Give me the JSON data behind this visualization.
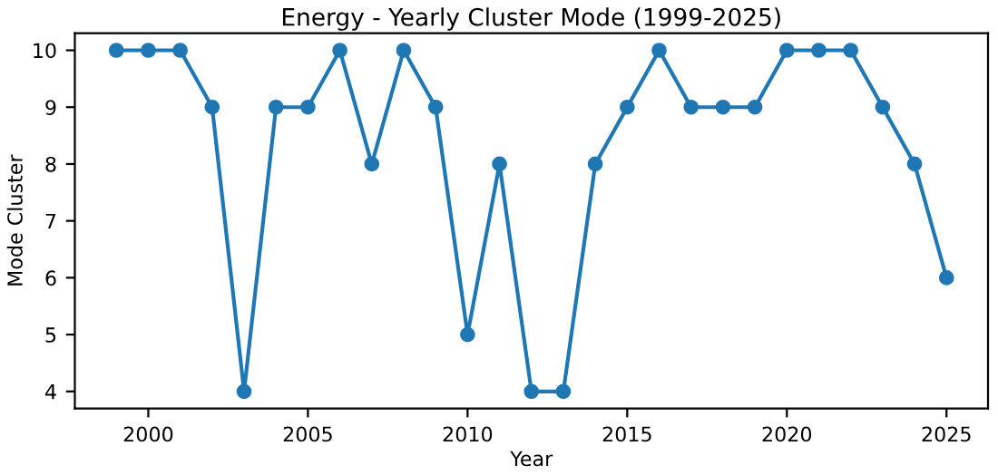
{
  "chart_data": {
    "type": "line",
    "title": "Energy - Yearly Cluster Mode (1999-2025)",
    "xlabel": "Year",
    "ylabel": "Mode Cluster",
    "x": [
      1999,
      2000,
      2001,
      2002,
      2003,
      2004,
      2005,
      2006,
      2007,
      2008,
      2009,
      2010,
      2011,
      2012,
      2013,
      2014,
      2015,
      2016,
      2017,
      2018,
      2019,
      2020,
      2021,
      2022,
      2023,
      2024,
      2025
    ],
    "series": [
      {
        "color": "#1f77b4",
        "values": [
          10,
          10,
          10,
          9,
          4,
          9,
          9,
          10,
          8,
          10,
          9,
          5,
          8,
          4,
          4,
          8,
          9,
          10,
          9,
          9,
          9,
          10,
          10,
          10,
          9,
          8,
          6
        ]
      }
    ],
    "xlim": [
      1997.7,
      2026.3
    ],
    "xticks": [
      2000,
      2005,
      2010,
      2015,
      2020,
      2025
    ],
    "ylim": [
      3.7,
      10.3
    ],
    "yticks": [
      4,
      5,
      6,
      7,
      8,
      9,
      10
    ],
    "marker": "circle",
    "line_style": "solid",
    "grid": false
  }
}
